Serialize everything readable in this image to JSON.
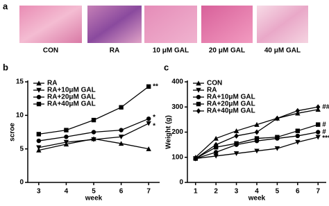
{
  "figure": {
    "panel_labels": [
      "a",
      "b",
      "c"
    ],
    "images": [
      "CON",
      "RA",
      "10 μM GAL",
      "20 μM GAL",
      "40 μM GAL"
    ]
  },
  "chart_data": [
    {
      "type": "line",
      "x_label": "week",
      "y_label": "scroe",
      "x": [
        3,
        4,
        5,
        6,
        7
      ],
      "xlim": [
        2.6,
        7.4
      ],
      "xticks": [
        3,
        4,
        5,
        6,
        7
      ],
      "ylim": [
        0,
        15
      ],
      "yticks": [
        0,
        5,
        10,
        15
      ],
      "legend": "upper left",
      "series": [
        {
          "name": "RA",
          "color": "#000000",
          "marker": "triangle-up",
          "values": [
            4.8,
            5.7,
            6.5,
            5.8,
            5.0
          ]
        },
        {
          "name": "RA+10μM GAL",
          "color": "#000000",
          "marker": "triangle-down",
          "values": [
            5.2,
            6.0,
            6.4,
            6.8,
            8.8
          ]
        },
        {
          "name": "RA+20μM GAL",
          "color": "#000000",
          "marker": "circle",
          "values": [
            6.2,
            6.8,
            7.5,
            7.8,
            9.5
          ]
        },
        {
          "name": "RA+40μM GAL",
          "color": "#000000",
          "marker": "square",
          "values": [
            7.2,
            7.8,
            9.3,
            11.2,
            14.3
          ]
        }
      ],
      "annotations": [
        {
          "text": "**",
          "x": 7,
          "y": 14.3
        },
        {
          "text": "*",
          "x": 7,
          "y": 9.7
        },
        {
          "text": "*",
          "x": 7,
          "y": 8.4
        }
      ]
    },
    {
      "type": "line",
      "x_label": "week",
      "y_label": "Weight (g)",
      "x": [
        1,
        2,
        3,
        4,
        5,
        6,
        7
      ],
      "xlim": [
        0.6,
        7.4
      ],
      "xticks": [
        1,
        2,
        3,
        4,
        5,
        6,
        7
      ],
      "ylim": [
        0,
        400
      ],
      "yticks": [
        0,
        100,
        200,
        300,
        400
      ],
      "legend": "upper left",
      "series": [
        {
          "name": "CON",
          "color": "#000000",
          "marker": "triangle-up",
          "values": [
            100,
            175,
            205,
            230,
            255,
            275,
            290
          ]
        },
        {
          "name": "RA",
          "color": "#000000",
          "marker": "triangle-down",
          "values": [
            95,
            105,
            115,
            125,
            135,
            160,
            180
          ]
        },
        {
          "name": "RA+10μM GAL",
          "color": "#000000",
          "marker": "circle",
          "values": [
            95,
            120,
            150,
            165,
            175,
            185,
            200
          ]
        },
        {
          "name": "RA+20μM GAL",
          "color": "#000000",
          "marker": "square",
          "values": [
            95,
            140,
            155,
            175,
            180,
            205,
            230
          ]
        },
        {
          "name": "RA+40μM GAL",
          "color": "#000000",
          "marker": "diamond",
          "values": [
            95,
            150,
            185,
            200,
            255,
            285,
            300
          ]
        }
      ],
      "annotations": [
        {
          "text": "##",
          "x": 7,
          "y": 300
        },
        {
          "text": "#",
          "x": 7,
          "y": 230
        },
        {
          "text": "#",
          "x": 7,
          "y": 200
        },
        {
          "text": "***",
          "x": 7,
          "y": 175
        }
      ]
    }
  ]
}
